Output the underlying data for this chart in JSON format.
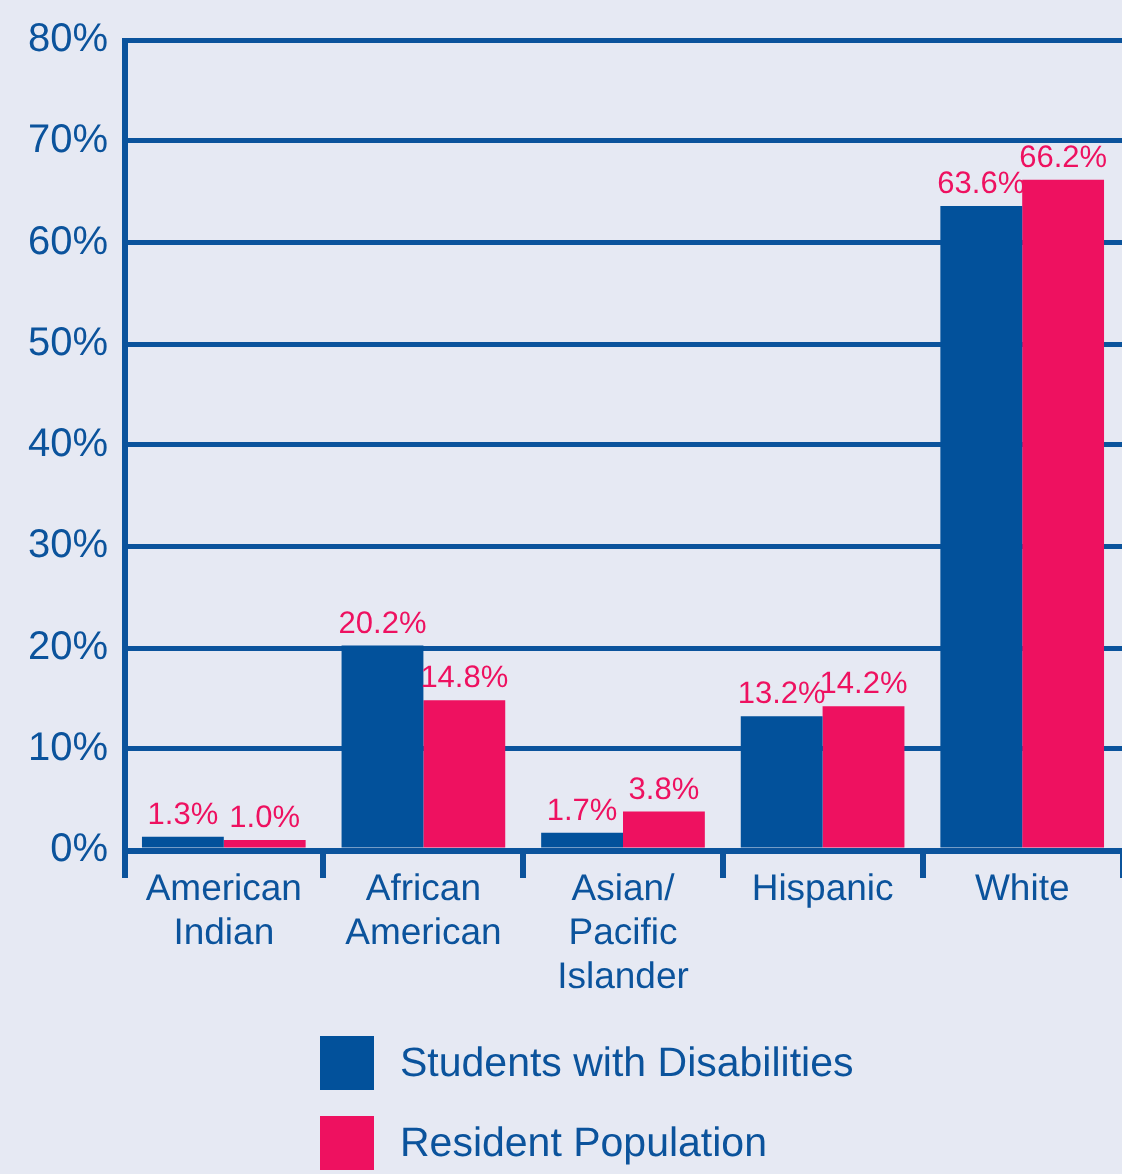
{
  "chart_data": {
    "type": "bar",
    "categories": [
      "American Indian",
      "African American",
      "Asian/ Pacific Islander",
      "Hispanic",
      "White"
    ],
    "series": [
      {
        "name": "Students with Disabilities",
        "color": "#02519b",
        "values": [
          1.3,
          20.2,
          1.7,
          13.2,
          63.6
        ],
        "value_labels": [
          "1.3%",
          "20.2%",
          "1.7%",
          "13.2%",
          "63.6%"
        ]
      },
      {
        "name": "Resident Population",
        "color": "#ee1160",
        "values": [
          1.0,
          14.8,
          3.8,
          14.2,
          66.2
        ],
        "value_labels": [
          "1.0%",
          "14.8%",
          "3.8%",
          "14.2%",
          "66.2%"
        ]
      }
    ],
    "ylim": [
      0,
      80
    ],
    "yticks": [
      {
        "value": 0,
        "label": "0%"
      },
      {
        "value": 10,
        "label": "10%"
      },
      {
        "value": 20,
        "label": "20%"
      },
      {
        "value": 30,
        "label": "30%"
      },
      {
        "value": 40,
        "label": "40%"
      },
      {
        "value": 50,
        "label": "50%"
      },
      {
        "value": 60,
        "label": "60%"
      },
      {
        "value": 70,
        "label": "70%"
      },
      {
        "value": 80,
        "label": "80%"
      }
    ],
    "grid": "y",
    "legend": "bottom"
  }
}
